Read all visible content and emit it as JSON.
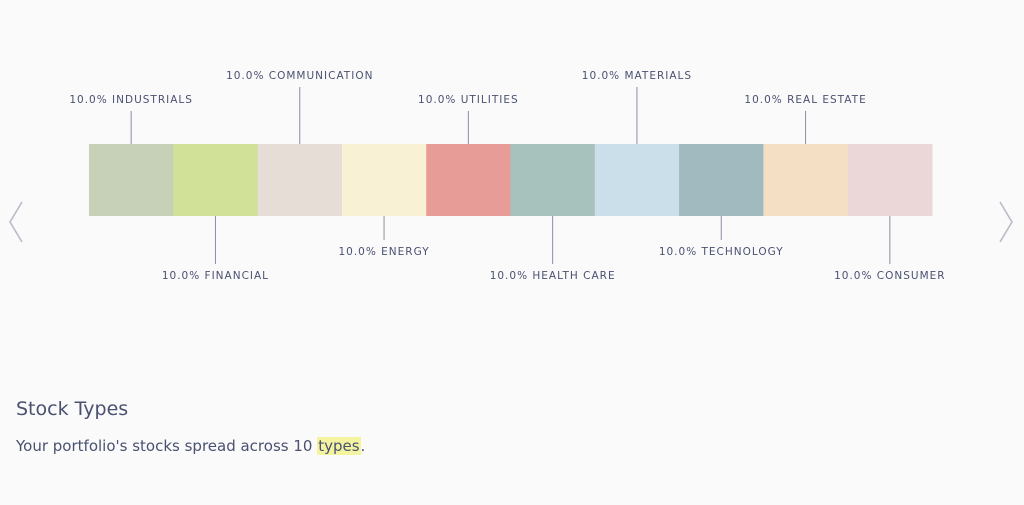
{
  "chart_data": {
    "type": "bar",
    "orientation": "stacked-horizontal",
    "categories": [
      "INDUSTRIALS",
      "FINANCIAL",
      "COMMUNICATION",
      "ENERGY",
      "UTILITIES",
      "HEALTH CARE",
      "MATERIALS",
      "TECHNOLOGY",
      "REAL ESTATE",
      "CONSUMER"
    ],
    "values": [
      10.0,
      10.0,
      10.0,
      10.0,
      10.0,
      10.0,
      10.0,
      10.0,
      10.0,
      10.0
    ],
    "labels": [
      "10.0% INDUSTRIALS",
      "10.0% FINANCIAL",
      "10.0% COMMUNICATION",
      "10.0% ENERGY",
      "10.0% UTILITIES",
      "10.0% HEALTH CARE",
      "10.0% MATERIALS",
      "10.0% TECHNOLOGY",
      "10.0% REAL ESTATE",
      "10.0% CONSUMER"
    ],
    "colors": [
      "#c6d1b8",
      "#d1e197",
      "#e6ddd7",
      "#f8f1d4",
      "#e89c98",
      "#a7c1bd",
      "#cadfe9",
      "#a1bac0",
      "#f4dec4",
      "#ecd7d8"
    ],
    "label_positions": [
      "above-near",
      "below-far",
      "above-far",
      "below-near",
      "above-near",
      "below-far",
      "above-far",
      "below-near",
      "above-near",
      "below-far"
    ],
    "title": "",
    "xlabel": "",
    "ylabel": "",
    "grid": false
  },
  "nav": {
    "prev_icon": "chevron-left-icon",
    "next_icon": "chevron-right-icon"
  },
  "section": {
    "title": "Stock Types",
    "desc_prefix": "Your portfolio's stocks spread across 10 ",
    "desc_highlight": "types",
    "desc_suffix": "."
  },
  "colors": {
    "text": "#4a5170",
    "leader_line": "#8b8fa0",
    "highlight": "#f4f3a0",
    "arrow": "#b8bcc8"
  }
}
